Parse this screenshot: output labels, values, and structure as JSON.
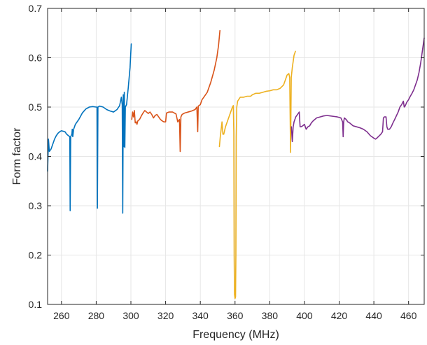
{
  "chart_data": {
    "type": "line",
    "title": "",
    "xlabel": "Frequency (MHz)",
    "ylabel": "Form factor",
    "xlim": [
      252,
      469
    ],
    "ylim": [
      0.1,
      0.7
    ],
    "grid": true,
    "legend": "none",
    "xticks": [
      260,
      280,
      300,
      320,
      340,
      360,
      380,
      400,
      420,
      440,
      460
    ],
    "yticks": [
      0.1,
      0.2,
      0.3,
      0.4,
      0.5,
      0.6,
      0.7
    ],
    "xtick_labels": [
      "260",
      "280",
      "300",
      "320",
      "340",
      "360",
      "380",
      "400",
      "420",
      "440",
      "460"
    ],
    "ytick_labels": [
      "0.1",
      "0.2",
      "0.3",
      "0.4",
      "0.5",
      "0.6",
      "0.7"
    ],
    "series": [
      {
        "color": "#0072BD",
        "points": [
          [
            252,
            0.37
          ],
          [
            252.5,
            0.435
          ],
          [
            253,
            0.41
          ],
          [
            254,
            0.415
          ],
          [
            255,
            0.425
          ],
          [
            256,
            0.435
          ],
          [
            257,
            0.442
          ],
          [
            258,
            0.447
          ],
          [
            259,
            0.45
          ],
          [
            260,
            0.452
          ],
          [
            261,
            0.451
          ],
          [
            262,
            0.45
          ],
          [
            263,
            0.445
          ],
          [
            264,
            0.442
          ],
          [
            264.8,
            0.44
          ],
          [
            265,
            0.29
          ],
          [
            265.3,
            0.44
          ],
          [
            266,
            0.445
          ],
          [
            266.2,
            0.455
          ],
          [
            266.5,
            0.44
          ],
          [
            267,
            0.455
          ],
          [
            268,
            0.465
          ],
          [
            270,
            0.475
          ],
          [
            272,
            0.488
          ],
          [
            274,
            0.496
          ],
          [
            276,
            0.5
          ],
          [
            278,
            0.501
          ],
          [
            280,
            0.5
          ],
          [
            280.5,
            0.5
          ],
          [
            280.7,
            0.295
          ],
          [
            281,
            0.5
          ],
          [
            282,
            0.502
          ],
          [
            284,
            0.5
          ],
          [
            286,
            0.495
          ],
          [
            288,
            0.492
          ],
          [
            290,
            0.49
          ],
          [
            292,
            0.495
          ],
          [
            293.5,
            0.503
          ],
          [
            294.5,
            0.52
          ],
          [
            295,
            0.505
          ],
          [
            295.3,
            0.285
          ],
          [
            295.6,
            0.525
          ],
          [
            295.9,
            0.42
          ],
          [
            296.2,
            0.53
          ],
          [
            296.5,
            0.418
          ],
          [
            296.8,
            0.5
          ],
          [
            297.5,
            0.505
          ],
          [
            298.5,
            0.54
          ],
          [
            299.5,
            0.58
          ],
          [
            300.2,
            0.628
          ]
        ]
      },
      {
        "color": "#D95319",
        "points": [
          [
            300.5,
            0.475
          ],
          [
            301,
            0.49
          ],
          [
            301.5,
            0.48
          ],
          [
            302,
            0.493
          ],
          [
            302.5,
            0.468
          ],
          [
            303,
            0.47
          ],
          [
            303.5,
            0.465
          ],
          [
            304,
            0.472
          ],
          [
            305,
            0.475
          ],
          [
            306,
            0.482
          ],
          [
            307,
            0.488
          ],
          [
            308,
            0.493
          ],
          [
            309,
            0.49
          ],
          [
            310,
            0.487
          ],
          [
            311,
            0.49
          ],
          [
            312,
            0.485
          ],
          [
            313,
            0.478
          ],
          [
            314,
            0.483
          ],
          [
            315,
            0.485
          ],
          [
            316,
            0.48
          ],
          [
            317,
            0.475
          ],
          [
            318,
            0.472
          ],
          [
            319,
            0.47
          ],
          [
            320,
            0.47
          ],
          [
            320.5,
            0.488
          ],
          [
            322,
            0.49
          ],
          [
            324,
            0.49
          ],
          [
            325,
            0.488
          ],
          [
            326,
            0.486
          ],
          [
            327,
            0.47
          ],
          [
            328,
            0.475
          ],
          [
            328.4,
            0.41
          ],
          [
            328.8,
            0.48
          ],
          [
            329.5,
            0.485
          ],
          [
            331,
            0.488
          ],
          [
            333,
            0.49
          ],
          [
            335,
            0.492
          ],
          [
            337,
            0.495
          ],
          [
            338,
            0.5
          ],
          [
            338.5,
            0.45
          ],
          [
            338.8,
            0.502
          ],
          [
            340,
            0.505
          ],
          [
            341,
            0.515
          ],
          [
            342,
            0.52
          ],
          [
            344,
            0.53
          ],
          [
            346,
            0.55
          ],
          [
            348,
            0.575
          ],
          [
            349.5,
            0.6
          ],
          [
            350.5,
            0.625
          ],
          [
            351.3,
            0.655
          ]
        ]
      },
      {
        "color": "#EDB120",
        "points": [
          [
            351,
            0.42
          ],
          [
            351.5,
            0.44
          ],
          [
            352,
            0.455
          ],
          [
            352.5,
            0.47
          ],
          [
            353,
            0.445
          ],
          [
            353.5,
            0.445
          ],
          [
            354.5,
            0.46
          ],
          [
            355.5,
            0.47
          ],
          [
            356.5,
            0.48
          ],
          [
            357.5,
            0.49
          ],
          [
            358.5,
            0.5
          ],
          [
            359,
            0.503
          ],
          [
            359.3,
            0.45
          ],
          [
            359.5,
            0.2
          ],
          [
            359.7,
            0.12
          ],
          [
            360,
            0.112
          ],
          [
            360.3,
            0.115
          ],
          [
            360.5,
            0.2
          ],
          [
            360.7,
            0.44
          ],
          [
            361,
            0.5
          ],
          [
            361.5,
            0.512
          ],
          [
            363,
            0.52
          ],
          [
            365,
            0.52
          ],
          [
            367,
            0.522
          ],
          [
            369,
            0.522
          ],
          [
            370,
            0.525
          ],
          [
            372,
            0.528
          ],
          [
            374,
            0.528
          ],
          [
            376,
            0.53
          ],
          [
            378,
            0.532
          ],
          [
            380,
            0.533
          ],
          [
            382,
            0.535
          ],
          [
            384,
            0.535
          ],
          [
            386,
            0.538
          ],
          [
            388,
            0.545
          ],
          [
            389,
            0.555
          ],
          [
            390,
            0.565
          ],
          [
            391,
            0.568
          ],
          [
            391.5,
            0.56
          ],
          [
            392,
            0.408
          ],
          [
            392.4,
            0.56
          ],
          [
            393,
            0.58
          ],
          [
            394,
            0.605
          ],
          [
            394.8,
            0.613
          ]
        ]
      },
      {
        "color": "#7E2F8E",
        "points": [
          [
            392.5,
            0.46
          ],
          [
            393,
            0.43
          ],
          [
            393.5,
            0.46
          ],
          [
            394,
            0.47
          ],
          [
            395,
            0.48
          ],
          [
            396,
            0.485
          ],
          [
            397,
            0.49
          ],
          [
            397.5,
            0.46
          ],
          [
            398,
            0.46
          ],
          [
            399,
            0.462
          ],
          [
            400,
            0.465
          ],
          [
            401,
            0.455
          ],
          [
            402,
            0.46
          ],
          [
            403,
            0.462
          ],
          [
            404,
            0.468
          ],
          [
            405,
            0.472
          ],
          [
            406,
            0.475
          ],
          [
            407,
            0.478
          ],
          [
            409,
            0.48
          ],
          [
            411,
            0.482
          ],
          [
            413,
            0.483
          ],
          [
            415,
            0.482
          ],
          [
            417,
            0.481
          ],
          [
            419,
            0.48
          ],
          [
            421,
            0.478
          ],
          [
            422,
            0.47
          ],
          [
            422.3,
            0.44
          ],
          [
            422.6,
            0.47
          ],
          [
            423,
            0.478
          ],
          [
            424,
            0.475
          ],
          [
            425,
            0.47
          ],
          [
            426,
            0.468
          ],
          [
            427,
            0.465
          ],
          [
            428,
            0.462
          ],
          [
            430,
            0.46
          ],
          [
            432,
            0.458
          ],
          [
            434,
            0.455
          ],
          [
            436,
            0.45
          ],
          [
            438,
            0.442
          ],
          [
            440,
            0.437
          ],
          [
            441,
            0.435
          ],
          [
            442,
            0.438
          ],
          [
            444,
            0.445
          ],
          [
            445,
            0.45
          ],
          [
            445.5,
            0.478
          ],
          [
            446,
            0.48
          ],
          [
            447,
            0.48
          ],
          [
            447.5,
            0.46
          ],
          [
            448,
            0.455
          ],
          [
            449,
            0.455
          ],
          [
            450,
            0.46
          ],
          [
            451,
            0.468
          ],
          [
            452,
            0.475
          ],
          [
            454,
            0.49
          ],
          [
            455,
            0.5
          ],
          [
            456,
            0.505
          ],
          [
            457,
            0.512
          ],
          [
            457.5,
            0.5
          ],
          [
            458,
            0.502
          ],
          [
            459,
            0.51
          ],
          [
            460,
            0.515
          ],
          [
            461,
            0.522
          ],
          [
            462,
            0.528
          ],
          [
            463,
            0.535
          ],
          [
            464,
            0.545
          ],
          [
            465,
            0.555
          ],
          [
            466,
            0.57
          ],
          [
            467,
            0.59
          ],
          [
            468,
            0.615
          ],
          [
            469,
            0.64
          ]
        ]
      }
    ]
  }
}
